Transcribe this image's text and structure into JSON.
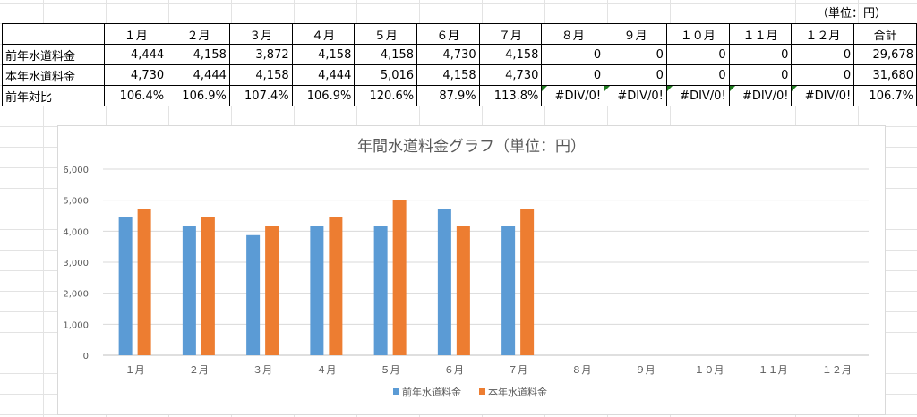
{
  "unit_note": "（単位：円）",
  "table": {
    "headers": [
      "",
      "１月",
      "２月",
      "３月",
      "４月",
      "５月",
      "６月",
      "７月",
      "８月",
      "９月",
      "１０月",
      "１１月",
      "１２月",
      "合計"
    ],
    "rows": [
      {
        "label": "前年水道料金",
        "cells": [
          "4,444",
          "4,158",
          "3,872",
          "4,158",
          "4,158",
          "4,730",
          "4,158",
          "0",
          "0",
          "0",
          "0",
          "0",
          "29,678"
        ]
      },
      {
        "label": "本年水道料金",
        "cells": [
          "4,730",
          "4,444",
          "4,158",
          "4,444",
          "5,016",
          "4,158",
          "4,730",
          "0",
          "0",
          "0",
          "0",
          "0",
          "31,680"
        ]
      },
      {
        "label": "前年対比",
        "cells": [
          "106.4%",
          "106.9%",
          "107.4%",
          "106.9%",
          "120.6%",
          "87.9%",
          "113.8%",
          "#DIV/0!",
          "#DIV/0!",
          "#DIV/0!",
          "#DIV/0!",
          "#DIV/0!",
          "106.7%"
        ]
      }
    ]
  },
  "chart_data": {
    "type": "bar",
    "title": "年間水道料金グラフ（単位：円）",
    "categories": [
      "１月",
      "２月",
      "３月",
      "４月",
      "５月",
      "６月",
      "７月",
      "８月",
      "９月",
      "１０月",
      "１１月",
      "１２月"
    ],
    "series": [
      {
        "name": "前年水道料金",
        "color": "#5b9bd5",
        "values": [
          4444,
          4158,
          3872,
          4158,
          4158,
          4730,
          4158,
          0,
          0,
          0,
          0,
          0
        ]
      },
      {
        "name": "本年水道料金",
        "color": "#ed7d31",
        "values": [
          4730,
          4444,
          4158,
          4444,
          5016,
          4158,
          4730,
          0,
          0,
          0,
          0,
          0
        ]
      }
    ],
    "ylim": [
      0,
      6000
    ],
    "yticks": [
      0,
      1000,
      2000,
      3000,
      4000,
      5000,
      6000
    ],
    "ytick_labels": [
      "0",
      "1,000",
      "2,000",
      "3,000",
      "4,000",
      "5,000",
      "6,000"
    ],
    "grid": true,
    "legend_position": "bottom"
  }
}
